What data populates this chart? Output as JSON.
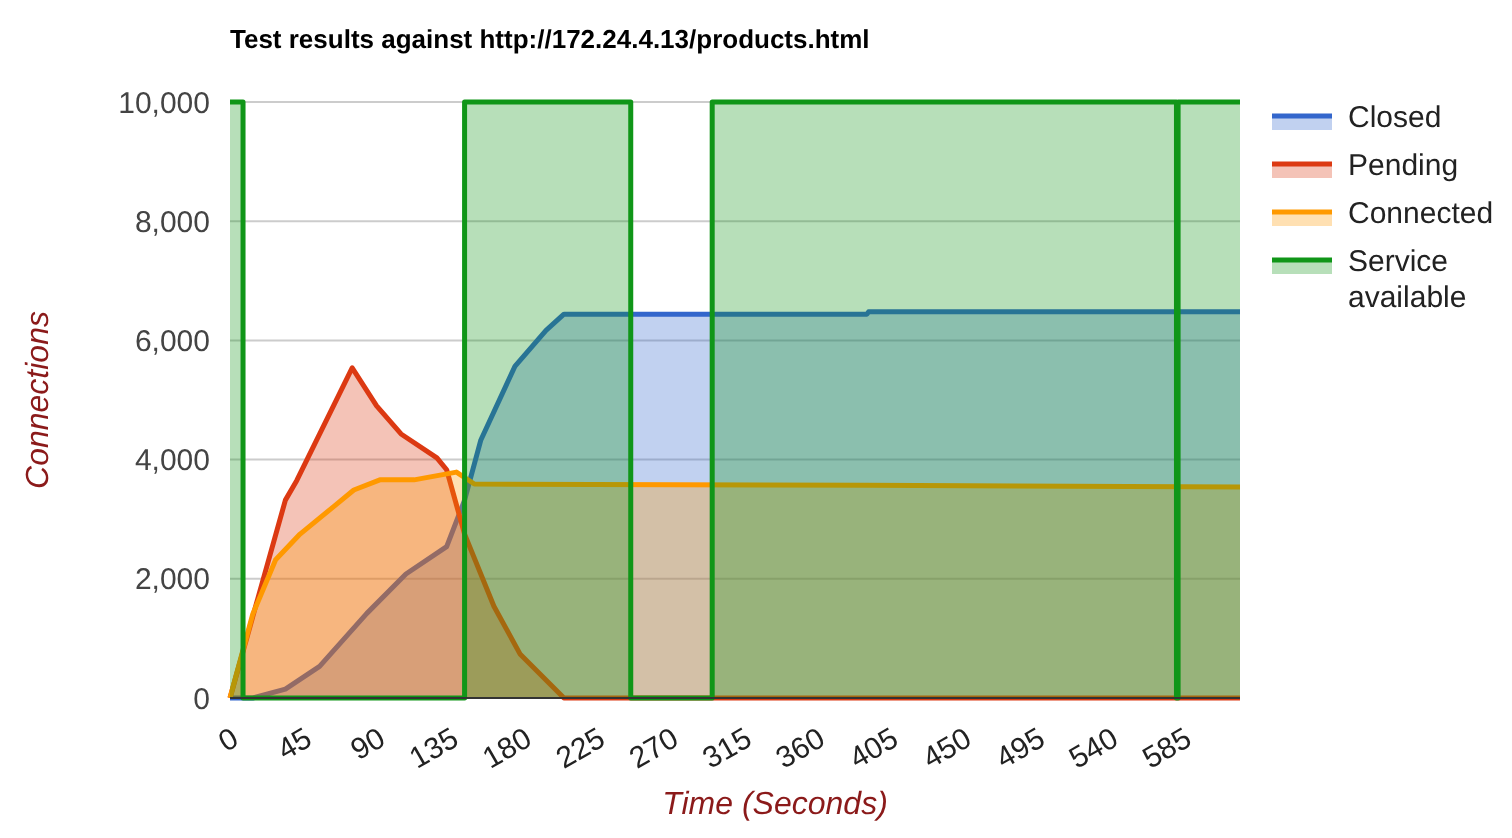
{
  "chart_data": {
    "type": "area",
    "title": "Test results against http://172.24.4.13/products.html",
    "xlabel": "Time (Seconds)",
    "ylabel": "Connections",
    "xlim": [
      0,
      620
    ],
    "xticks": [
      0,
      45,
      90,
      135,
      180,
      225,
      270,
      315,
      360,
      405,
      450,
      495,
      540,
      585
    ],
    "ylim": [
      0,
      10000
    ],
    "yticks": [
      {
        "value": 0,
        "label": "0"
      },
      {
        "value": 2000,
        "label": "2,000"
      },
      {
        "value": 4000,
        "label": "4,000"
      },
      {
        "value": 6000,
        "label": "6,000"
      },
      {
        "value": 8000,
        "label": "8,000"
      },
      {
        "value": 10000,
        "label": "10,000"
      }
    ],
    "grid": "y",
    "legend": "right",
    "series": [
      {
        "name": "Closed",
        "color": "#3366cc",
        "x": [
          0,
          14,
          34,
          55,
          84,
          108,
          133,
          144,
          154,
          175,
          194,
          205,
          391,
          392,
          620
        ],
        "values": [
          0,
          0,
          150,
          530,
          1420,
          2080,
          2540,
          3320,
          4330,
          5570,
          6170,
          6440,
          6440,
          6480,
          6480
        ]
      },
      {
        "name": "Pending",
        "color": "#dc3912",
        "x": [
          0,
          34,
          41,
          75,
          90,
          105,
          127,
          133,
          144,
          162,
          178,
          205,
          620
        ],
        "values": [
          0,
          3320,
          3650,
          5540,
          4900,
          4430,
          4030,
          3830,
          2750,
          1540,
          740,
          0,
          0
        ]
      },
      {
        "name": "Connected",
        "color": "#ff9900",
        "x": [
          0,
          14,
          28,
          43,
          64,
          76,
          92,
          113,
          139,
          150,
          391,
          620
        ],
        "values": [
          0,
          1410,
          2320,
          2750,
          3220,
          3490,
          3660,
          3660,
          3790,
          3590,
          3570,
          3540
        ]
      },
      {
        "name": "Service available",
        "color": "#109618",
        "x": [
          0,
          8,
          8,
          144,
          144,
          246,
          246,
          296,
          296,
          581,
          581,
          582,
          582,
          620
        ],
        "values": [
          10000,
          10000,
          0,
          0,
          10000,
          10000,
          0,
          0,
          10000,
          10000,
          0,
          0,
          10000,
          10000
        ]
      }
    ]
  }
}
